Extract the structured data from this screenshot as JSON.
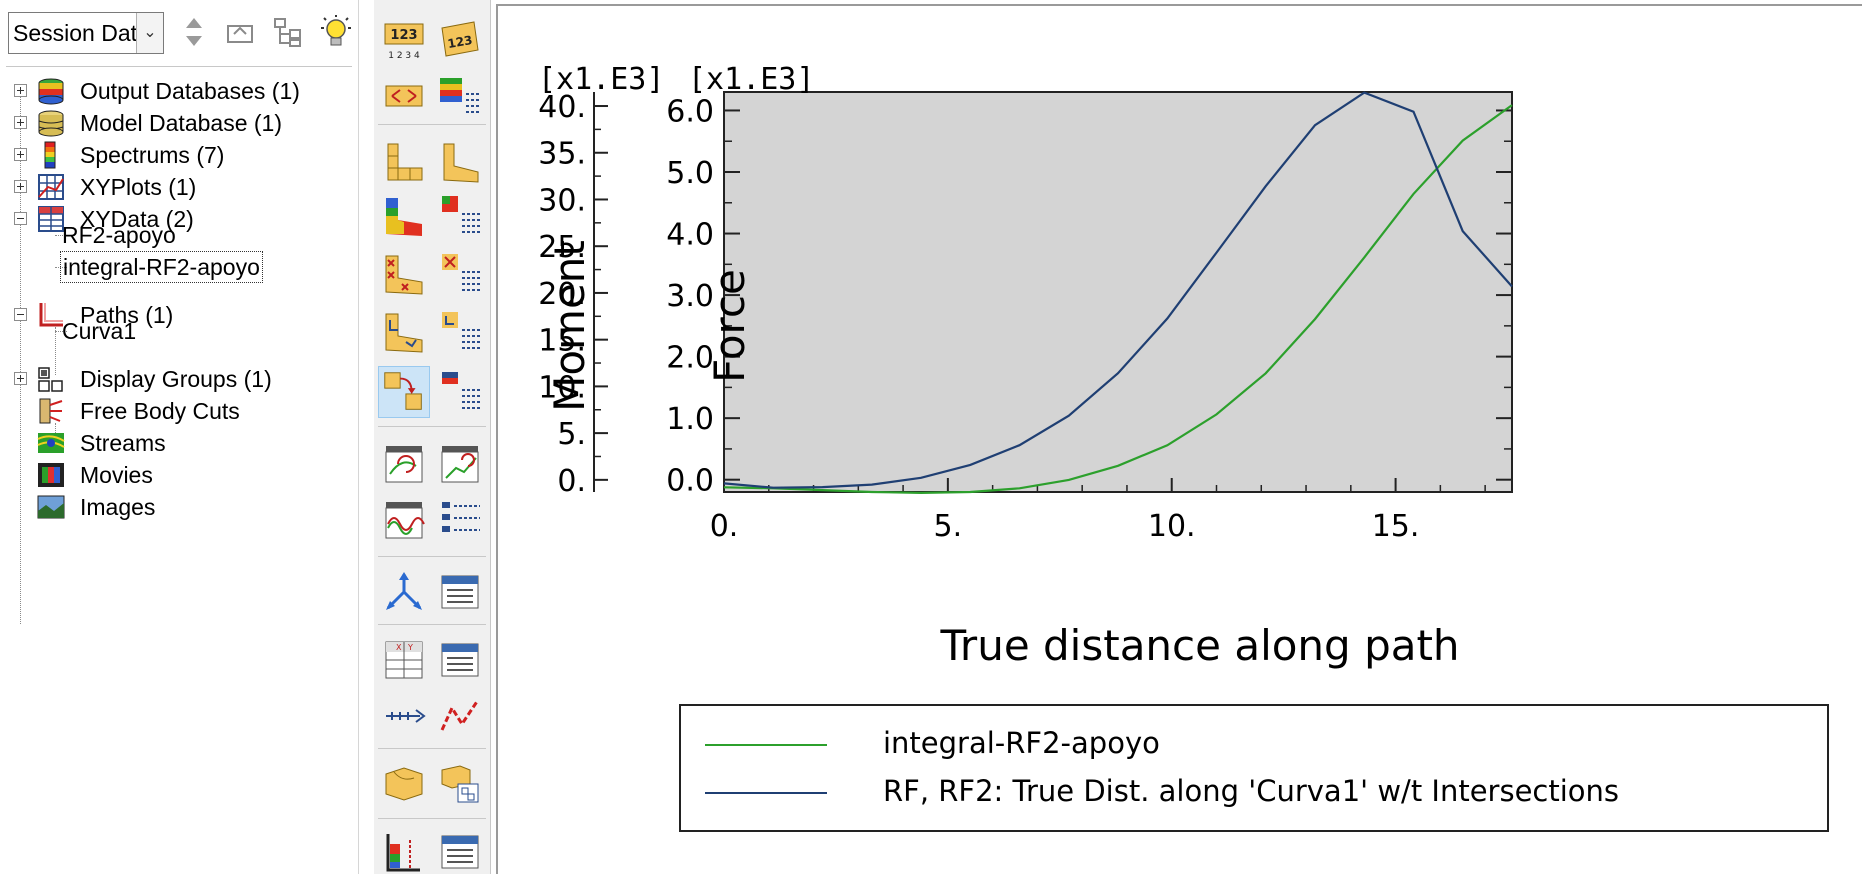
{
  "session_selector": {
    "value": "Session Data"
  },
  "tree": {
    "output_databases": "Output Databases (1)",
    "model_database": "Model Database (1)",
    "spectrums": "Spectrums (7)",
    "xyplots": "XYPlots (1)",
    "xydata": "XYData (2)",
    "xydata_children": [
      "RF2-apoyo",
      "integral-RF2-apoyo"
    ],
    "paths": "Paths (1)",
    "paths_children": [
      "Curva1"
    ],
    "display_groups": "Display Groups (1)",
    "free_body_cuts": "Free Body Cuts",
    "streams": "Streams",
    "movies": "Movies",
    "images": "Images"
  },
  "plot": {
    "left_multiplier": "[x1.E3]",
    "right_multiplier": "[x1.E3]",
    "left_axis_label": "Moment",
    "right_axis_label": "Force",
    "xlabel": "True distance along path",
    "legend": [
      "integral-RF2-apoyo",
      "RF, RF2: True Dist. along 'Curva1' w/t Intersections"
    ]
  },
  "chart_data": {
    "type": "line",
    "xlabel": "True distance along path",
    "x_ticks": [
      "0.",
      "5.",
      "10.",
      "15."
    ],
    "xlim": [
      0,
      17.6
    ],
    "y_left_label": "Moment",
    "y_left_multiplier": "[x1.E3]",
    "y_left_ticks": [
      "0.",
      "5.",
      "10.",
      "15.",
      "20.",
      "25.",
      "30.",
      "35.",
      "40."
    ],
    "y_left_lim": [
      -1.3,
      41.5
    ],
    "y_right_label": "Force",
    "y_right_multiplier": "[x1.E3]",
    "y_right_ticks": [
      "0.0",
      "1.0",
      "2.0",
      "3.0",
      "4.0",
      "5.0",
      "6.0"
    ],
    "y_right_lim": [
      -0.2,
      6.3
    ],
    "plot_background": "#d4d4d4",
    "legend_position": "bottom",
    "series": [
      {
        "name": "integral-RF2-apoyo",
        "axis": "left",
        "color": "#2ca02c",
        "x": [
          0,
          1.1,
          2.2,
          3.3,
          4.4,
          5.5,
          6.6,
          7.7,
          8.8,
          9.9,
          11.0,
          12.1,
          13.2,
          14.3,
          15.4,
          16.5,
          17.6
        ],
        "y": [
          -0.8,
          -0.9,
          -1.1,
          -1.3,
          -1.4,
          -1.3,
          -0.9,
          0.0,
          1.5,
          3.7,
          7.0,
          11.4,
          17.2,
          23.8,
          30.6,
          36.3,
          40.1
        ]
      },
      {
        "name": "RF, RF2: True Dist. along 'Curva1' w/t Intersections",
        "axis": "right",
        "color": "#1f3f73",
        "x": [
          0,
          1.1,
          2.2,
          3.3,
          4.4,
          5.5,
          6.6,
          7.7,
          8.8,
          9.9,
          11.0,
          12.1,
          13.2,
          14.3,
          15.4,
          16.5,
          17.6
        ],
        "y": [
          -0.06,
          -0.13,
          -0.12,
          -0.08,
          0.03,
          0.24,
          0.56,
          1.04,
          1.73,
          2.62,
          3.69,
          4.77,
          5.76,
          6.29,
          5.98,
          4.04,
          3.14
        ]
      }
    ]
  }
}
